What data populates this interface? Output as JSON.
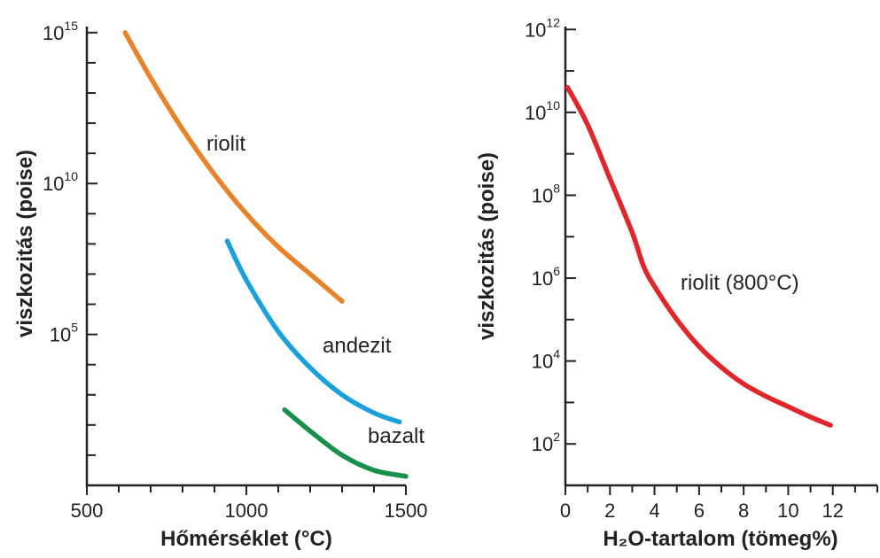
{
  "chart_data": [
    {
      "type": "line",
      "xlabel": "Hőmérséklet (°C)",
      "ylabel": "viszkozitás (poise)",
      "y_scale": "log",
      "xlim": [
        500,
        1500
      ],
      "ylim_log10": [
        0,
        15
      ],
      "x_ticks": [
        500,
        1000,
        1500
      ],
      "x_tick_labels": [
        "500",
        "1000",
        "1500"
      ],
      "y_ticks_log10": [
        5,
        10,
        15
      ],
      "y_tick_labels": [
        {
          "base": "10",
          "exp": "5"
        },
        {
          "base": "10",
          "exp": "10"
        },
        {
          "base": "10",
          "exp": "15"
        }
      ],
      "series": [
        {
          "name": "riolit",
          "color": "#e8832a",
          "x": [
            620,
            700,
            800,
            900,
            1000,
            1100,
            1200,
            1300
          ],
          "log10_y": [
            15.0,
            13.5,
            11.8,
            10.3,
            9.0,
            7.9,
            7.0,
            6.1
          ]
        },
        {
          "name": "andezit",
          "color": "#1aa1dc",
          "x": [
            940,
            1000,
            1100,
            1200,
            1300,
            1400,
            1480
          ],
          "log10_y": [
            8.1,
            6.8,
            5.1,
            3.9,
            3.0,
            2.4,
            2.1
          ]
        },
        {
          "name": "bazalt",
          "color": "#16904a",
          "x": [
            1120,
            1200,
            1300,
            1400,
            1500
          ],
          "log10_y": [
            2.5,
            1.8,
            1.0,
            0.5,
            0.3
          ]
        }
      ]
    },
    {
      "type": "line",
      "xlabel": "H₂O-tartalom (tömeg%)",
      "ylabel": "viszkozitás (poise)",
      "y_scale": "log",
      "xlim": [
        0,
        14
      ],
      "ylim_log10": [
        1,
        12
      ],
      "x_ticks": [
        0,
        2,
        4,
        6,
        8,
        10,
        12
      ],
      "x_tick_labels": [
        "0",
        "2",
        "4",
        "6",
        "8",
        "10",
        "12"
      ],
      "y_ticks_log10": [
        2,
        4,
        6,
        8,
        10,
        12
      ],
      "y_tick_labels": [
        {
          "base": "10",
          "exp": "2"
        },
        {
          "base": "10",
          "exp": "4"
        },
        {
          "base": "10",
          "exp": "6"
        },
        {
          "base": "10",
          "exp": "8"
        },
        {
          "base": "10",
          "exp": "10"
        },
        {
          "base": "10",
          "exp": "12"
        }
      ],
      "series": [
        {
          "name": "riolit (800°C)",
          "color": "#e0262b",
          "x": [
            0.1,
            1,
            2,
            3,
            3.5,
            4,
            5,
            6,
            7,
            8,
            9,
            10,
            11,
            11.9
          ],
          "log10_y": [
            10.6,
            9.7,
            8.4,
            7.1,
            6.3,
            5.8,
            5.0,
            4.35,
            3.85,
            3.45,
            3.15,
            2.9,
            2.65,
            2.45
          ]
        }
      ]
    }
  ]
}
